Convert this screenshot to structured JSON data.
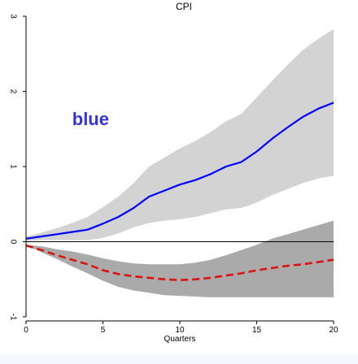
{
  "chart_data": {
    "type": "area",
    "title": "CPI",
    "xlabel": "Quarters",
    "ylabel": "",
    "xlim": [
      0,
      20
    ],
    "ylim": [
      -1,
      3
    ],
    "xticks": [
      0,
      5,
      10,
      15,
      20
    ],
    "yticks": [
      -1,
      0,
      1,
      2,
      3
    ],
    "x": [
      0,
      1,
      2,
      3,
      4,
      5,
      6,
      7,
      8,
      9,
      10,
      11,
      12,
      13,
      14,
      15,
      16,
      17,
      18,
      19,
      20
    ],
    "series": [
      {
        "values": [
          0.04,
          0.07,
          0.1,
          0.13,
          0.16,
          0.24,
          0.33,
          0.45,
          0.6,
          0.68,
          0.76,
          0.82,
          0.9,
          1.0,
          1.06,
          1.2,
          1.37,
          1.52,
          1.66,
          1.77,
          1.85
        ],
        "color": "#0000ff",
        "style": "solid",
        "band": {
          "lower": [
            0.01,
            0.02,
            0.02,
            0.02,
            0.02,
            0.05,
            0.11,
            0.19,
            0.25,
            0.28,
            0.3,
            0.33,
            0.38,
            0.43,
            0.45,
            0.52,
            0.62,
            0.7,
            0.78,
            0.84,
            0.88
          ],
          "upper": [
            0.07,
            0.12,
            0.18,
            0.25,
            0.33,
            0.46,
            0.6,
            0.78,
            1.0,
            1.12,
            1.24,
            1.34,
            1.46,
            1.6,
            1.7,
            1.92,
            2.14,
            2.35,
            2.55,
            2.7,
            2.83
          ],
          "color": "#d3d3d3"
        }
      },
      {
        "values": [
          -0.05,
          -0.11,
          -0.18,
          -0.24,
          -0.3,
          -0.38,
          -0.43,
          -0.46,
          -0.48,
          -0.5,
          -0.51,
          -0.5,
          -0.48,
          -0.45,
          -0.42,
          -0.38,
          -0.35,
          -0.32,
          -0.3,
          -0.27,
          -0.24
        ],
        "color": "#dd1111",
        "style": "dashed",
        "band": {
          "lower": [
            -0.05,
            -0.14,
            -0.23,
            -0.33,
            -0.42,
            -0.52,
            -0.6,
            -0.65,
            -0.68,
            -0.71,
            -0.72,
            -0.73,
            -0.74,
            -0.74,
            -0.74,
            -0.74,
            -0.74,
            -0.74,
            -0.74,
            -0.74,
            -0.74
          ],
          "upper": [
            -0.04,
            -0.06,
            -0.1,
            -0.13,
            -0.17,
            -0.22,
            -0.26,
            -0.29,
            -0.3,
            -0.3,
            -0.3,
            -0.28,
            -0.24,
            -0.18,
            -0.11,
            -0.04,
            0.04,
            0.1,
            0.16,
            0.22,
            0.28
          ],
          "color": "#aaaaaa"
        }
      }
    ],
    "annotations": [
      {
        "text": "blue",
        "x": 4.2,
        "y": 1.55,
        "color": "#3333dd"
      }
    ],
    "zero_line": true,
    "grid": false,
    "legend": "none"
  }
}
